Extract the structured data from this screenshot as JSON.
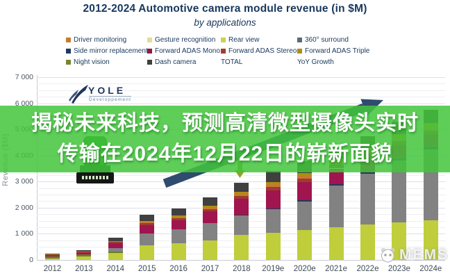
{
  "header": {
    "title": "2012-2024 Automotive camera module revenue (in $M)",
    "subtitle": "by applications"
  },
  "overlay_banner": {
    "line1": "揭秘未来科技，预测高清微型摄像头实时",
    "line2": "传输在2024年12月22日的崭新面貌",
    "bg_color": "#42C63C",
    "text_color": "#FFFFFF"
  },
  "logo": {
    "name": "YOLE",
    "subtext": "Développement"
  },
  "watermark": {
    "label": "MEMS"
  },
  "axis": {
    "y_title": "Revenue ($M)",
    "y_tick_labels": [
      "0",
      "1 000",
      "2 000",
      "3 000",
      "4 000",
      "5 000",
      "6 000",
      "7 000"
    ]
  },
  "legend": {
    "items": [
      {
        "label": "Driver monitoring",
        "color": "#C87A2E",
        "col": 0,
        "row": 0
      },
      {
        "label": "Gesture recognition",
        "color": "#E3DC9B",
        "col": 1,
        "row": 0
      },
      {
        "label": "Rear view",
        "color": "#C8D253",
        "col": 2,
        "row": 0
      },
      {
        "label": "360° surround",
        "color": "#5E6A74",
        "col": 3,
        "row": 0
      },
      {
        "label": "Side mirror replacement",
        "color": "#1F3864",
        "col": 0,
        "row": 1
      },
      {
        "label": "Forward ADAS Mono",
        "color": "#8E1B45",
        "col": 1,
        "row": 1
      },
      {
        "label": "Forward ADAS Stereo",
        "color": "#A33C2E",
        "col": 2,
        "row": 1
      },
      {
        "label": "Forward ADAS Triple",
        "color": "#AD8E12",
        "col": 3,
        "row": 1
      },
      {
        "label": "Night vision",
        "color": "#75862F",
        "col": 0,
        "row": 2
      },
      {
        "label": "Dash camera",
        "color": "#3F3F3F",
        "col": 1,
        "row": 2
      },
      {
        "label": "TOTAL",
        "color": null,
        "col": 2,
        "row": 2
      },
      {
        "label": "YoY Growth",
        "color": null,
        "col": 3,
        "row": 2
      }
    ]
  },
  "chart_data": {
    "type": "bar",
    "stacked": true,
    "title": "2012-2024 Automotive camera module revenue (in $M)",
    "subtitle": "by applications",
    "xlabel": "",
    "ylabel": "Revenue ($M)",
    "ylim": [
      0,
      7000
    ],
    "grid": "horizontal, minor every 250, major every 1000",
    "legend_position": "top",
    "categories": [
      "2012",
      "2013",
      "2014",
      "2015",
      "2016",
      "2017",
      "2018",
      "2019e",
      "2020e",
      "2021e",
      "2022e",
      "2023e",
      "2024e"
    ],
    "series": [
      {
        "name": "Rear view",
        "color": "#BFCE3A",
        "values": [
          60,
          120,
          260,
          570,
          640,
          740,
          960,
          1040,
          1140,
          1260,
          1350,
          1450,
          1530
        ]
      },
      {
        "name": "Night vision",
        "color": "#6B7A2E",
        "values": [
          60,
          80,
          60,
          0,
          0,
          0,
          0,
          0,
          0,
          0,
          0,
          0,
          0
        ]
      },
      {
        "name": "360° surround",
        "color": "#828282",
        "values": [
          0,
          0,
          120,
          440,
          520,
          660,
          740,
          900,
          1100,
          1590,
          1950,
          2350,
          2700
        ]
      },
      {
        "name": "Side mirror replacement",
        "color": "#1F3864",
        "values": [
          0,
          0,
          0,
          0,
          0,
          0,
          20,
          30,
          40,
          50,
          60,
          80,
          100
        ]
      },
      {
        "name": "Forward ADAS Mono",
        "color": "#A0154E",
        "values": [
          60,
          90,
          200,
          330,
          360,
          450,
          620,
          700,
          700,
          600,
          550,
          500,
          450
        ]
      },
      {
        "name": "Forward ADAS Stereo",
        "color": "#9E3B32",
        "values": [
          0,
          0,
          40,
          60,
          70,
          90,
          100,
          120,
          140,
          150,
          160,
          170,
          180
        ]
      },
      {
        "name": "Driver monitoring",
        "color": "#C87A2E",
        "values": [
          20,
          20,
          40,
          60,
          70,
          80,
          90,
          100,
          110,
          120,
          130,
          140,
          150
        ]
      },
      {
        "name": "Forward ADAS Triple",
        "color": "#AD8E12",
        "values": [
          0,
          0,
          0,
          30,
          40,
          60,
          70,
          80,
          90,
          100,
          110,
          120,
          130
        ]
      },
      {
        "name": "Dash camera",
        "color": "#404040",
        "values": [
          50,
          70,
          130,
          240,
          270,
          320,
          350,
          430,
          450,
          380,
          440,
          480,
          510
        ]
      }
    ],
    "totals_estimated": [
      250,
      380,
      850,
      1730,
      1970,
      2400,
      2950,
      3400,
      3770,
      4250,
      4750,
      5290,
      5750
    ],
    "annotations": [
      {
        "type": "trend-arrow-up",
        "color": "#2F4B6E",
        "from_x": "2016",
        "to_x": "2023e",
        "note": "upward growth arrow across chart"
      },
      {
        "type": "down-arrow",
        "color": "#8FA32A",
        "at_x": "2018",
        "note": "small down arrow above 2018 bar"
      }
    ]
  }
}
